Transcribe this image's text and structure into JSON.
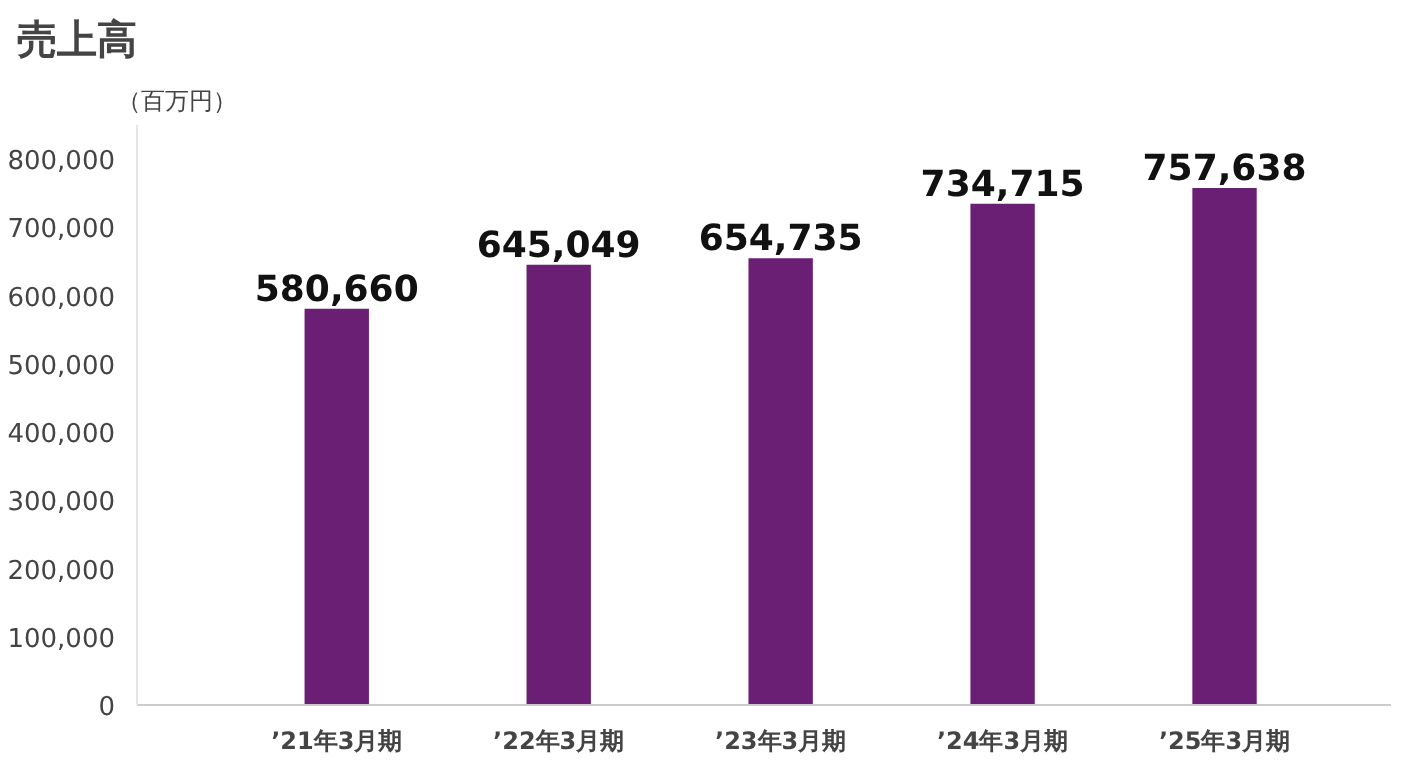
{
  "chart_data": {
    "type": "bar",
    "title": "売上高",
    "ylabel": "（百万円）",
    "categories": [
      "’21年3月期",
      "’22年3月期",
      "’23年3月期",
      "’24年3月期",
      "’25年3月期"
    ],
    "values": [
      580660,
      645049,
      654735,
      734715,
      757638
    ],
    "value_labels": [
      "580,660",
      "645,049",
      "654,735",
      "734,715",
      "757,638"
    ],
    "color": "#6a1f74",
    "grid": false,
    "ylim": [
      0,
      850000
    ],
    "yticks": [
      {
        "value": 0,
        "label": "0"
      },
      {
        "value": 100000,
        "label": "100,000"
      },
      {
        "value": 200000,
        "label": "200,000"
      },
      {
        "value": 300000,
        "label": "300,000"
      },
      {
        "value": 400000,
        "label": "400,000"
      },
      {
        "value": 500000,
        "label": "500,000"
      },
      {
        "value": 600000,
        "label": "600,000"
      },
      {
        "value": 700000,
        "label": "700,000"
      },
      {
        "value": 800000,
        "label": "800,000"
      }
    ]
  }
}
